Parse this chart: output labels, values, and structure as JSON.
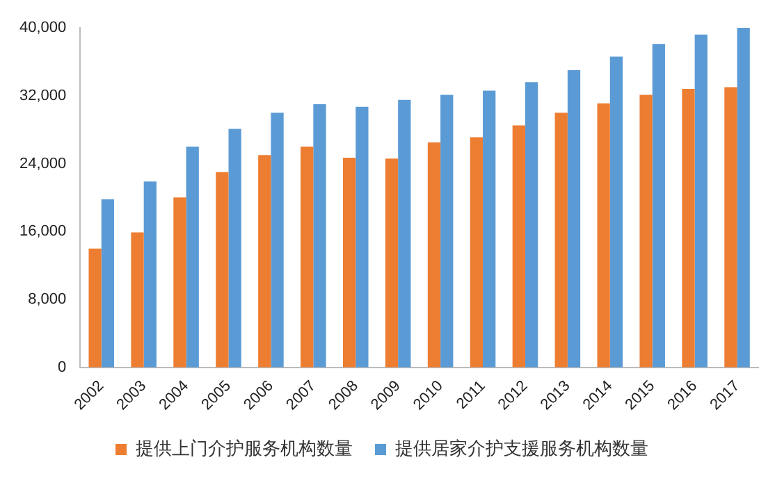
{
  "chart_data": {
    "type": "bar",
    "categories": [
      "2002",
      "2003",
      "2004",
      "2005",
      "2006",
      "2007",
      "2008",
      "2009",
      "2010",
      "2011",
      "2012",
      "2013",
      "2014",
      "2015",
      "2016",
      "2017"
    ],
    "series": [
      {
        "name": "提供上门介护服务机构数量",
        "color": "#ed7d31",
        "values": [
          14000,
          15900,
          20000,
          23000,
          25000,
          26000,
          24700,
          24600,
          26500,
          27100,
          28500,
          30000,
          31100,
          32100,
          32800,
          33000
        ]
      },
      {
        "name": "提供居家介护支援服务机构数量",
        "color": "#5b9bd5",
        "values": [
          19800,
          21900,
          26000,
          28100,
          30000,
          31000,
          30700,
          31500,
          32100,
          32600,
          33600,
          35000,
          36600,
          38100,
          39200,
          40000
        ]
      }
    ],
    "ylim": [
      0,
      40000
    ],
    "yticks": [
      {
        "value": 0,
        "label": "0"
      },
      {
        "value": 8000,
        "label": "8,000"
      },
      {
        "value": 16000,
        "label": "16,000"
      },
      {
        "value": 24000,
        "label": "24,000"
      },
      {
        "value": 32000,
        "label": "32,000"
      },
      {
        "value": 40000,
        "label": "40,000"
      }
    ],
    "grid": false,
    "legend": "bottom"
  }
}
